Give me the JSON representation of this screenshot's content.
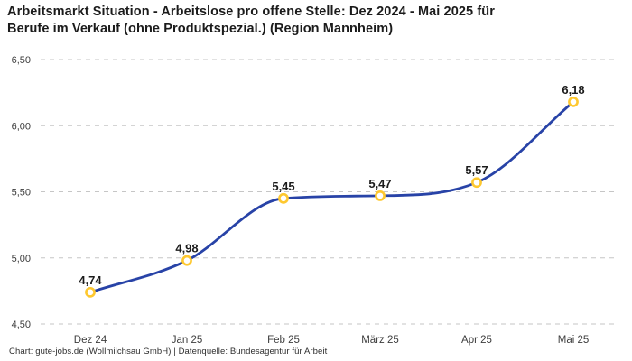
{
  "header": {
    "title_line1": "Arbeitsmarkt Situation - Arbeitslose pro offene Stelle: Dez 2024 - Mai 2025 für",
    "title_line2": "Berufe im Verkauf (ohne Produktspezial.) (Region Mannheim)"
  },
  "footer": {
    "credit": "Chart: gute-jobs.de (Wollmilchsau GmbH) | Datenquelle: Bundesagentur für Arbeit"
  },
  "chart_data": {
    "type": "line",
    "title": "Arbeitsmarkt Situation - Arbeitslose pro offene Stelle: Dez 2024 - Mai 2025 für Berufe im Verkauf (ohne Produktspezial.) (Region Mannheim)",
    "categories": [
      "Dez 24",
      "Jan 25",
      "Feb 25",
      "März 25",
      "Apr 25",
      "Mai 25"
    ],
    "values": [
      4.74,
      4.98,
      5.45,
      5.47,
      5.57,
      6.18
    ],
    "value_labels": [
      "4,74",
      "4,98",
      "5,45",
      "5,47",
      "5,57",
      "6,18"
    ],
    "y_ticks": [
      4.5,
      5.0,
      5.5,
      6.0,
      6.5
    ],
    "y_tick_labels": [
      "4,50",
      "5,00",
      "5,50",
      "6,00",
      "6,50"
    ],
    "ylim": [
      4.5,
      6.5
    ],
    "xlabel": "",
    "ylabel": "",
    "grid": "horizontal-dashed",
    "legend": "none",
    "colors": {
      "line": "#2843a7",
      "marker_stroke": "#fec82f",
      "marker_fill": "#ffffff",
      "grid": "#c6c6c6",
      "tick_text": "#3d3d3d",
      "point_label_text": "#1b1b1b"
    }
  }
}
